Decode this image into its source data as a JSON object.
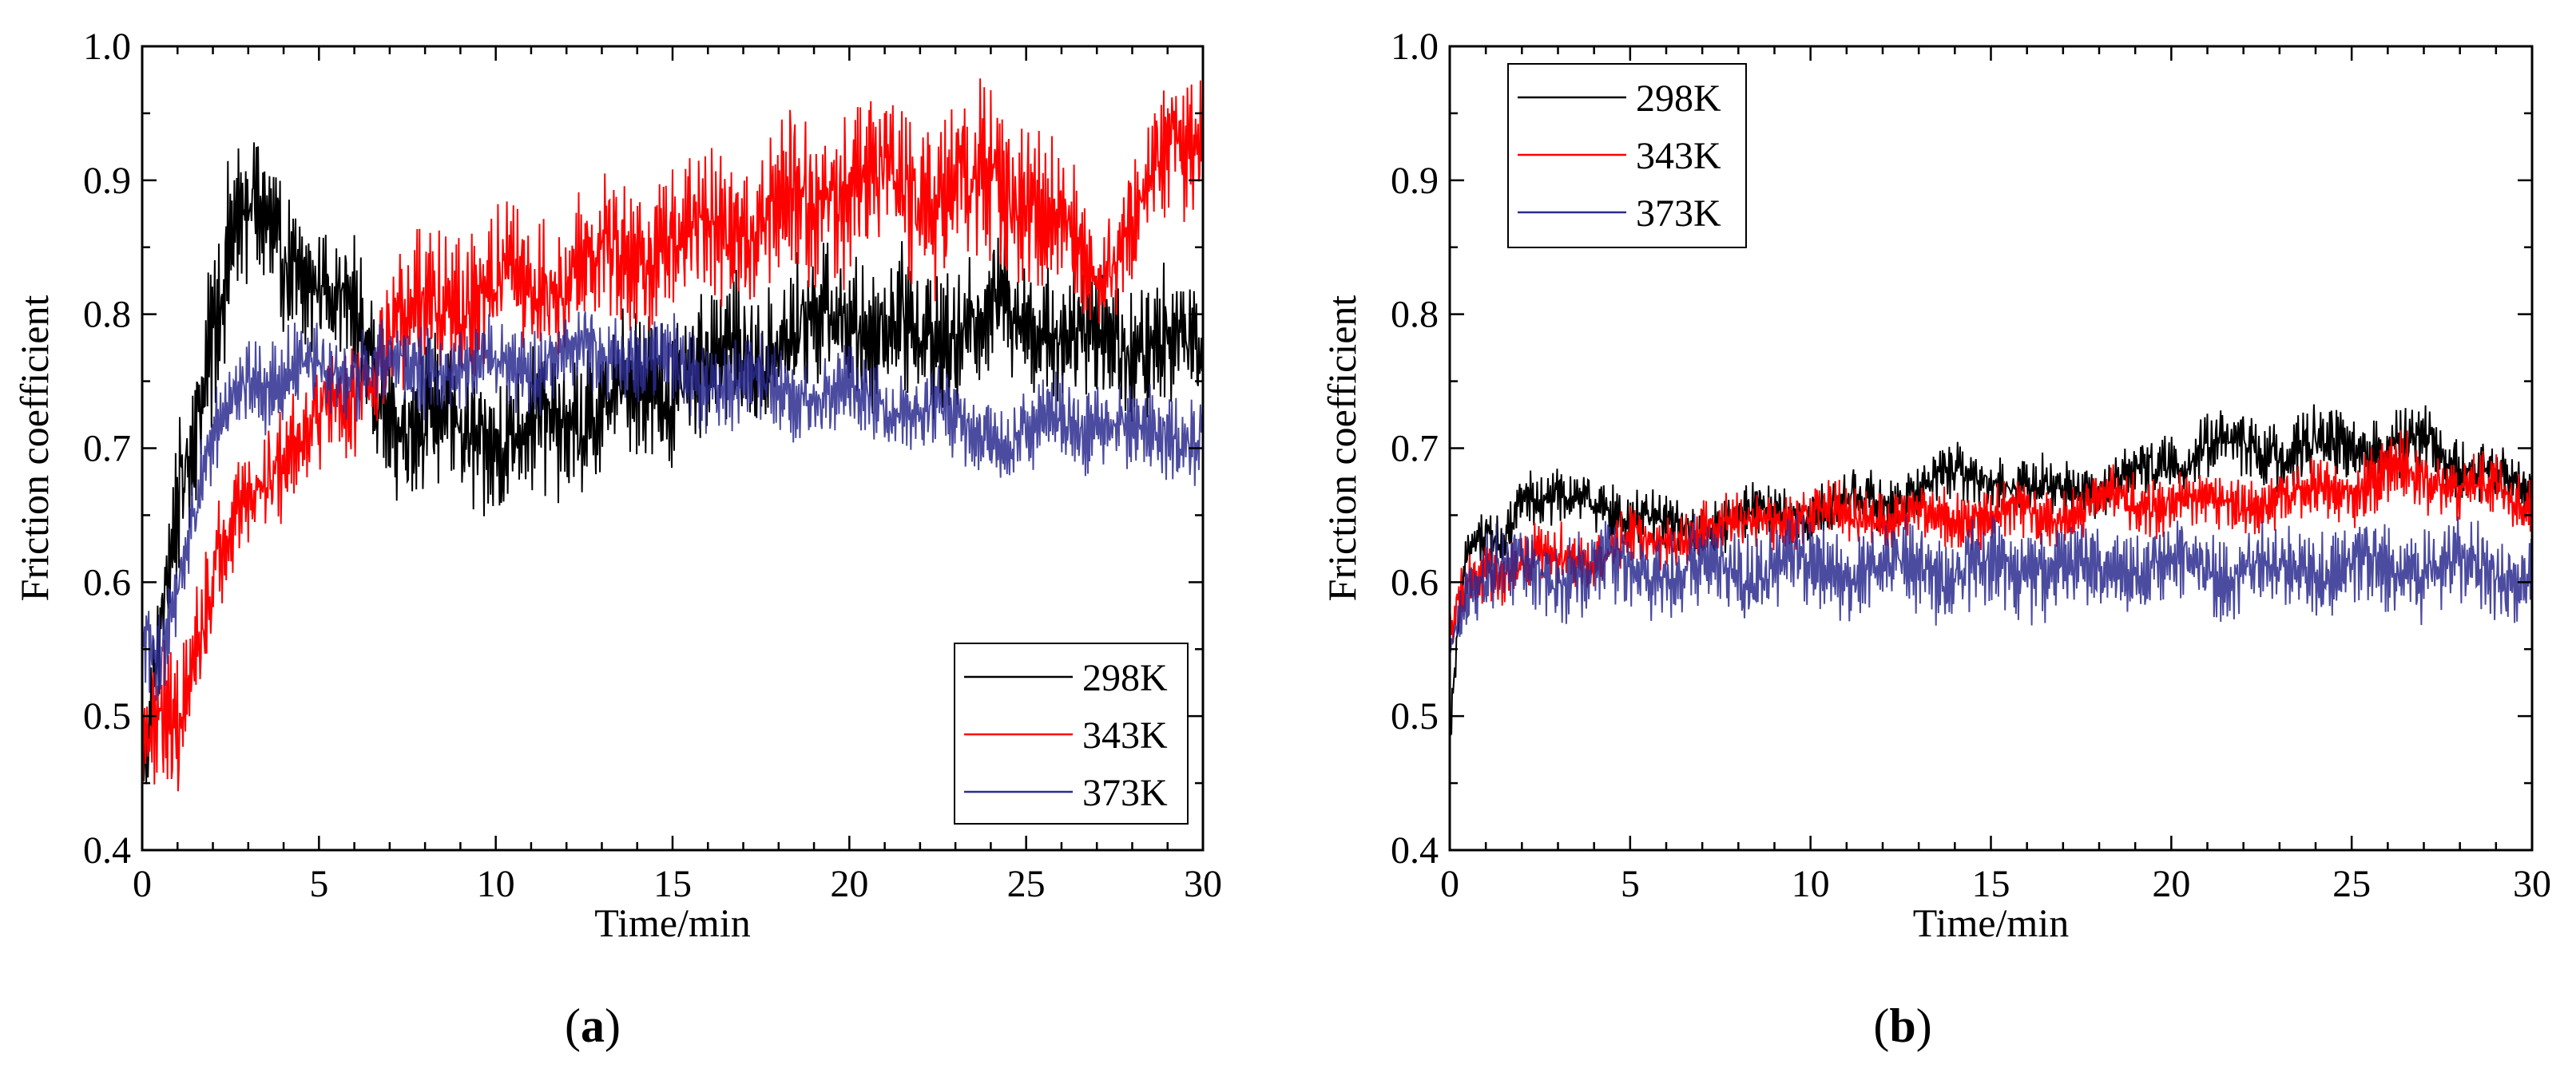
{
  "figure": {
    "panel_labels": [
      "(a)",
      "(b)"
    ]
  },
  "chart_data": [
    {
      "id": "a",
      "type": "line",
      "panel_label": "a",
      "xlabel": "Time/min",
      "ylabel": "Friction coefficient",
      "xlim": [
        0,
        30
      ],
      "ylim": [
        0.4,
        1.0
      ],
      "xticks": [
        0,
        5,
        10,
        15,
        20,
        25,
        30
      ],
      "xtick_labels": [
        "0",
        "5",
        "10",
        "15",
        "20",
        "25",
        "30"
      ],
      "yticks": [
        0.4,
        0.5,
        0.6,
        0.7,
        0.8,
        0.9,
        1.0
      ],
      "ytick_labels": [
        "0.4",
        "0.5",
        "0.6",
        "0.7",
        "0.8",
        "0.9",
        "1.0"
      ],
      "legend_position": "bottom-right",
      "sampling": "approximate mean trend (x in min) with oscillation amplitude; rendered as a noisy signal",
      "series": [
        {
          "name": "298K",
          "color": "#000000",
          "x": [
            0,
            0.5,
            1,
            1.5,
            2,
            2.5,
            3,
            3.5,
            4,
            5,
            6,
            7,
            8,
            9,
            10,
            11,
            12,
            13,
            14,
            15,
            16,
            17,
            18,
            19,
            20,
            21,
            22,
            23,
            24,
            25,
            26,
            27,
            28,
            29,
            30
          ],
          "mean": [
            0.45,
            0.55,
            0.65,
            0.72,
            0.8,
            0.86,
            0.87,
            0.86,
            0.84,
            0.83,
            0.79,
            0.73,
            0.72,
            0.71,
            0.71,
            0.71,
            0.72,
            0.73,
            0.74,
            0.75,
            0.76,
            0.77,
            0.78,
            0.79,
            0.8,
            0.79,
            0.78,
            0.79,
            0.8,
            0.8,
            0.79,
            0.78,
            0.78,
            0.78,
            0.77
          ],
          "amplitude": [
            0.04,
            0.04,
            0.05,
            0.05,
            0.06,
            0.06,
            0.06,
            0.05,
            0.05,
            0.05,
            0.05,
            0.05,
            0.05,
            0.05,
            0.05,
            0.05,
            0.05,
            0.05,
            0.05,
            0.05,
            0.05,
            0.05,
            0.05,
            0.05,
            0.05,
            0.05,
            0.05,
            0.05,
            0.05,
            0.05,
            0.05,
            0.05,
            0.05,
            0.05,
            0.05
          ]
        },
        {
          "name": "343K",
          "color": "#ff0000",
          "x": [
            0,
            0.5,
            1,
            1.5,
            2,
            2.5,
            3,
            3.5,
            4,
            5,
            6,
            7,
            8,
            9,
            10,
            11,
            12,
            13,
            14,
            15,
            16,
            17,
            18,
            19,
            20,
            21,
            22,
            23,
            24,
            25,
            26,
            27,
            28,
            29,
            30
          ],
          "mean": [
            0.47,
            0.5,
            0.5,
            0.55,
            0.6,
            0.64,
            0.66,
            0.68,
            0.7,
            0.72,
            0.74,
            0.78,
            0.8,
            0.81,
            0.82,
            0.82,
            0.83,
            0.84,
            0.85,
            0.85,
            0.86,
            0.87,
            0.88,
            0.89,
            0.9,
            0.9,
            0.89,
            0.89,
            0.9,
            0.89,
            0.86,
            0.83,
            0.87,
            0.92,
            0.93
          ],
          "amplitude": [
            0.04,
            0.05,
            0.05,
            0.05,
            0.04,
            0.04,
            0.04,
            0.04,
            0.04,
            0.04,
            0.04,
            0.05,
            0.05,
            0.05,
            0.05,
            0.05,
            0.05,
            0.05,
            0.05,
            0.05,
            0.05,
            0.05,
            0.06,
            0.06,
            0.06,
            0.06,
            0.06,
            0.06,
            0.06,
            0.06,
            0.05,
            0.04,
            0.04,
            0.05,
            0.05
          ]
        },
        {
          "name": "373K",
          "color": "#2b2b8f",
          "x": [
            0,
            0.5,
            1,
            1.5,
            2,
            2.5,
            3,
            3.5,
            4,
            5,
            6,
            7,
            8,
            9,
            10,
            11,
            12,
            13,
            14,
            15,
            16,
            17,
            18,
            19,
            20,
            21,
            22,
            23,
            24,
            25,
            26,
            27,
            28,
            29,
            30
          ],
          "mean": [
            0.56,
            0.55,
            0.6,
            0.65,
            0.7,
            0.74,
            0.76,
            0.75,
            0.75,
            0.76,
            0.76,
            0.76,
            0.76,
            0.76,
            0.76,
            0.76,
            0.77,
            0.77,
            0.77,
            0.76,
            0.75,
            0.75,
            0.74,
            0.74,
            0.74,
            0.73,
            0.73,
            0.72,
            0.71,
            0.71,
            0.72,
            0.72,
            0.71,
            0.71,
            0.71
          ],
          "amplitude": [
            0.03,
            0.03,
            0.03,
            0.03,
            0.03,
            0.03,
            0.03,
            0.03,
            0.03,
            0.03,
            0.03,
            0.03,
            0.03,
            0.03,
            0.03,
            0.03,
            0.03,
            0.03,
            0.03,
            0.03,
            0.03,
            0.03,
            0.03,
            0.03,
            0.03,
            0.03,
            0.03,
            0.03,
            0.03,
            0.03,
            0.03,
            0.03,
            0.03,
            0.03,
            0.03
          ]
        }
      ]
    },
    {
      "id": "b",
      "type": "line",
      "panel_label": "b",
      "xlabel": "Time/min",
      "ylabel": "Friction coefficient",
      "xlim": [
        0,
        30
      ],
      "ylim": [
        0.4,
        1.0
      ],
      "xticks": [
        0,
        5,
        10,
        15,
        20,
        25,
        30
      ],
      "xtick_labels": [
        "0",
        "5",
        "10",
        "15",
        "20",
        "25",
        "30"
      ],
      "yticks": [
        0.4,
        0.5,
        0.6,
        0.7,
        0.8,
        0.9,
        1.0
      ],
      "ytick_labels": [
        "0.4",
        "0.5",
        "0.6",
        "0.7",
        "0.8",
        "0.9",
        "1.0"
      ],
      "legend_position": "top-left",
      "sampling": "approximate mean trend (x in min) with oscillation amplitude; rendered as a noisy signal",
      "series": [
        {
          "name": "298K",
          "color": "#000000",
          "x": [
            0,
            0.2,
            0.5,
            1,
            1.5,
            2,
            2.5,
            3,
            4,
            5,
            6,
            7,
            8,
            9,
            10,
            11,
            12,
            13,
            14,
            15,
            16,
            17,
            18,
            19,
            20,
            21,
            22,
            23,
            24,
            25,
            26,
            27,
            28,
            29,
            30
          ],
          "mean": [
            0.48,
            0.56,
            0.62,
            0.63,
            0.63,
            0.67,
            0.66,
            0.66,
            0.66,
            0.65,
            0.64,
            0.64,
            0.65,
            0.65,
            0.65,
            0.66,
            0.66,
            0.67,
            0.68,
            0.68,
            0.67,
            0.67,
            0.67,
            0.68,
            0.69,
            0.7,
            0.7,
            0.7,
            0.7,
            0.7,
            0.7,
            0.7,
            0.69,
            0.68,
            0.66
          ],
          "amplitude": [
            0.01,
            0.02,
            0.02,
            0.02,
            0.02,
            0.02,
            0.02,
            0.02,
            0.02,
            0.02,
            0.02,
            0.02,
            0.02,
            0.02,
            0.02,
            0.02,
            0.02,
            0.02,
            0.02,
            0.02,
            0.02,
            0.02,
            0.02,
            0.02,
            0.02,
            0.025,
            0.025,
            0.025,
            0.025,
            0.025,
            0.025,
            0.025,
            0.02,
            0.02,
            0.02
          ]
        },
        {
          "name": "343K",
          "color": "#ff0000",
          "x": [
            0,
            0.2,
            0.5,
            1,
            1.5,
            2,
            2.5,
            3,
            4,
            5,
            6,
            7,
            8,
            9,
            10,
            11,
            12,
            13,
            14,
            15,
            16,
            17,
            18,
            19,
            20,
            21,
            22,
            23,
            24,
            25,
            26,
            27,
            28,
            29,
            30
          ],
          "mean": [
            0.56,
            0.58,
            0.6,
            0.61,
            0.61,
            0.61,
            0.62,
            0.62,
            0.62,
            0.63,
            0.63,
            0.64,
            0.64,
            0.65,
            0.65,
            0.65,
            0.65,
            0.65,
            0.65,
            0.65,
            0.65,
            0.65,
            0.66,
            0.66,
            0.66,
            0.66,
            0.66,
            0.66,
            0.67,
            0.67,
            0.68,
            0.68,
            0.67,
            0.67,
            0.66
          ],
          "amplitude": [
            0.02,
            0.02,
            0.02,
            0.02,
            0.02,
            0.02,
            0.02,
            0.02,
            0.02,
            0.02,
            0.02,
            0.02,
            0.02,
            0.02,
            0.02,
            0.02,
            0.02,
            0.02,
            0.02,
            0.02,
            0.02,
            0.02,
            0.02,
            0.02,
            0.02,
            0.02,
            0.02,
            0.02,
            0.02,
            0.025,
            0.025,
            0.025,
            0.02,
            0.02,
            0.02
          ]
        },
        {
          "name": "373K",
          "color": "#2b2b8f",
          "x": [
            0,
            0.2,
            0.5,
            1,
            1.5,
            2,
            2.5,
            3,
            4,
            5,
            6,
            7,
            8,
            9,
            10,
            11,
            12,
            13,
            14,
            15,
            16,
            17,
            18,
            19,
            20,
            21,
            22,
            23,
            24,
            25,
            26,
            27,
            28,
            29,
            30
          ],
          "mean": [
            0.55,
            0.57,
            0.6,
            0.61,
            0.61,
            0.61,
            0.61,
            0.61,
            0.61,
            0.61,
            0.61,
            0.61,
            0.61,
            0.61,
            0.61,
            0.61,
            0.61,
            0.61,
            0.61,
            0.61,
            0.61,
            0.61,
            0.61,
            0.61,
            0.61,
            0.61,
            0.61,
            0.61,
            0.61,
            0.61,
            0.61,
            0.61,
            0.61,
            0.61,
            0.61
          ],
          "amplitude": [
            0.01,
            0.02,
            0.025,
            0.03,
            0.03,
            0.03,
            0.03,
            0.03,
            0.03,
            0.03,
            0.03,
            0.03,
            0.03,
            0.03,
            0.03,
            0.03,
            0.03,
            0.03,
            0.03,
            0.03,
            0.03,
            0.03,
            0.03,
            0.03,
            0.03,
            0.03,
            0.03,
            0.03,
            0.03,
            0.03,
            0.03,
            0.03,
            0.03,
            0.03,
            0.03
          ]
        }
      ]
    }
  ]
}
